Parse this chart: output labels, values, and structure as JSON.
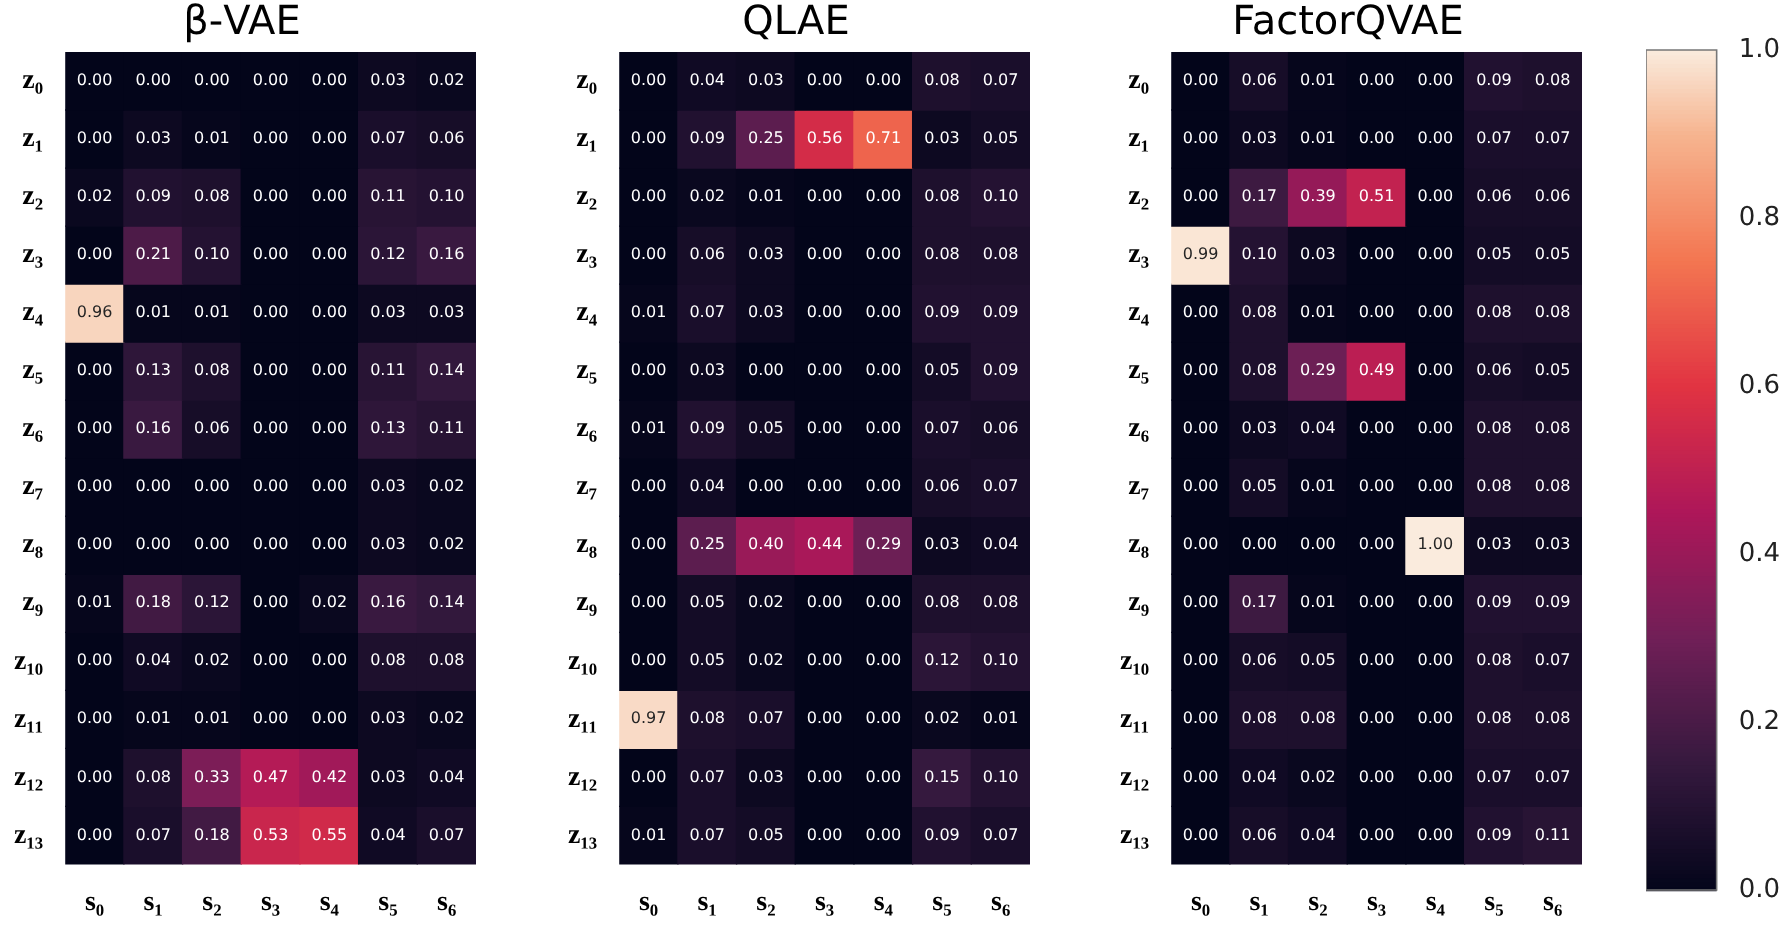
{
  "chart_data": [
    {
      "type": "heatmap",
      "title": "β-VAE",
      "categories": [
        "s₀",
        "s₁",
        "s₂",
        "s₃",
        "s₄",
        "s₅",
        "s₆"
      ],
      "y_categories": [
        "z₀",
        "z₁",
        "z₂",
        "z₃",
        "z₄",
        "z₅",
        "z₆",
        "z₇",
        "z₈",
        "z₉",
        "z₁₀",
        "z₁₁",
        "z₁₂",
        "z₁₃"
      ],
      "data_labels": true,
      "cells": [
        [
          0,
          0,
          0,
          0,
          0,
          0.03,
          0.02
        ],
        [
          0,
          0.03,
          0.01,
          0,
          0,
          0.07,
          0.06
        ],
        [
          0.02,
          0.09,
          0.08,
          0,
          0,
          0.11,
          0.1
        ],
        [
          0,
          0.21,
          0.1,
          0,
          0,
          0.12,
          0.16
        ],
        [
          0.96,
          0.01,
          0.01,
          0,
          0,
          0.03,
          0.03
        ],
        [
          0,
          0.13,
          0.08,
          0,
          0,
          0.11,
          0.14
        ],
        [
          0,
          0.16,
          0.06,
          0,
          0,
          0.13,
          0.11
        ],
        [
          0,
          0,
          0,
          0,
          0,
          0.03,
          0.02
        ],
        [
          0,
          0,
          0,
          0,
          0,
          0.03,
          0.02
        ],
        [
          0.01,
          0.18,
          0.12,
          0,
          0.02,
          0.16,
          0.14
        ],
        [
          0,
          0.04,
          0.02,
          0,
          0,
          0.08,
          0.08
        ],
        [
          0,
          0.01,
          0.01,
          0,
          0,
          0.03,
          0.02
        ],
        [
          0,
          0.08,
          0.33,
          0.47,
          0.42,
          0.03,
          0.04
        ],
        [
          0,
          0.07,
          0.18,
          0.53,
          0.55,
          0.04,
          0.07
        ]
      ],
      "cell_labels": [
        [
          "0.00",
          "0.00",
          "0.00",
          "0.00",
          "0.00",
          "0.03",
          "0.02"
        ],
        [
          "0.00",
          "0.03",
          "0.01",
          "0.00",
          "0.00",
          "0.07",
          "0.06"
        ],
        [
          "0.02",
          "0.09",
          "0.08",
          "0.00",
          "0.00",
          "0.11",
          "0.10"
        ],
        [
          "0.00",
          "0.21",
          "0.10",
          "0.00",
          "0.00",
          "0.12",
          "0.16"
        ],
        [
          "0.96",
          "0.01",
          "0.01",
          "0.00",
          "0.00",
          "0.03",
          "0.03"
        ],
        [
          "0.00",
          "0.13",
          "0.08",
          "0.00",
          "0.00",
          "0.11",
          "0.14"
        ],
        [
          "0.00",
          "0.16",
          "0.06",
          "0.00",
          "0.00",
          "0.13",
          "0.11"
        ],
        [
          "0.00",
          "0.00",
          "0.00",
          "0.00",
          "0.00",
          "0.03",
          "0.02"
        ],
        [
          "0.00",
          "0.00",
          "0.00",
          "0.00",
          "0.00",
          "0.03",
          "0.02"
        ],
        [
          "0.01",
          "0.18",
          "0.12",
          "0.00",
          "0.02",
          "0.16",
          "0.14"
        ],
        [
          "0.00",
          "0.04",
          "0.02",
          "0.00",
          "0.00",
          "0.08",
          "0.08"
        ],
        [
          "0.00",
          "0.01",
          "0.01",
          "0.00",
          "0.00",
          "0.03",
          "0.02"
        ],
        [
          "0.00",
          "0.08",
          "0.33",
          "0.47",
          "0.42",
          "0.03",
          "0.04"
        ],
        [
          "0.00",
          "0.07",
          "0.18",
          "0.53",
          "0.55",
          "0.04",
          "0.07"
        ]
      ]
    },
    {
      "type": "heatmap",
      "title": "QLAE",
      "categories": [
        "s₀",
        "s₁",
        "s₂",
        "s₃",
        "s₄",
        "s₅",
        "s₆"
      ],
      "y_categories": [
        "z₀",
        "z₁",
        "z₂",
        "z₃",
        "z₄",
        "z₅",
        "z₆",
        "z₇",
        "z₈",
        "z₉",
        "z₁₀",
        "z₁₁",
        "z₁₂",
        "z₁₃"
      ],
      "data_labels": true,
      "cells": [
        [
          0,
          0.04,
          0.03,
          0,
          0,
          0.08,
          0.07
        ],
        [
          0,
          0.09,
          0.25,
          0.56,
          0.71,
          0.03,
          0.05
        ],
        [
          0,
          0.02,
          0.01,
          0,
          0,
          0.08,
          0.1
        ],
        [
          0,
          0.06,
          0.03,
          0,
          0,
          0.08,
          0.08
        ],
        [
          0.01,
          0.07,
          0.03,
          0,
          0,
          0.09,
          0.09
        ],
        [
          0,
          0.03,
          0,
          0,
          0,
          0.05,
          0.09
        ],
        [
          0.01,
          0.09,
          0.05,
          0,
          0,
          0.07,
          0.06
        ],
        [
          0,
          0.04,
          0,
          0,
          0,
          0.06,
          0.07
        ],
        [
          0,
          0.25,
          0.4,
          0.44,
          0.29,
          0.03,
          0.04
        ],
        [
          0,
          0.05,
          0.02,
          0,
          0,
          0.08,
          0.08
        ],
        [
          0,
          0.05,
          0.02,
          0,
          0,
          0.12,
          0.1
        ],
        [
          0.97,
          0.08,
          0.07,
          0,
          0,
          0.02,
          0.01
        ],
        [
          0,
          0.07,
          0.03,
          0,
          0,
          0.15,
          0.1
        ],
        [
          0.01,
          0.07,
          0.05,
          0,
          0,
          0.09,
          0.07
        ]
      ],
      "cell_labels": [
        [
          "0.00",
          "0.04",
          "0.03",
          "0.00",
          "0.00",
          "0.08",
          "0.07"
        ],
        [
          "0.00",
          "0.09",
          "0.25",
          "0.56",
          "0.71",
          "0.03",
          "0.05"
        ],
        [
          "0.00",
          "0.02",
          "0.01",
          "0.00",
          "0.00",
          "0.08",
          "0.10"
        ],
        [
          "0.00",
          "0.06",
          "0.03",
          "0.00",
          "0.00",
          "0.08",
          "0.08"
        ],
        [
          "0.01",
          "0.07",
          "0.03",
          "0.00",
          "0.00",
          "0.09",
          "0.09"
        ],
        [
          "0.00",
          "0.03",
          "0.00",
          "0.00",
          "0.00",
          "0.05",
          "0.09"
        ],
        [
          "0.01",
          "0.09",
          "0.05",
          "0.00",
          "0.00",
          "0.07",
          "0.06"
        ],
        [
          "0.00",
          "0.04",
          "0.00",
          "0.00",
          "0.00",
          "0.06",
          "0.07"
        ],
        [
          "0.00",
          "0.25",
          "0.40",
          "0.44",
          "0.29",
          "0.03",
          "0.04"
        ],
        [
          "0.00",
          "0.05",
          "0.02",
          "0.00",
          "0.00",
          "0.08",
          "0.08"
        ],
        [
          "0.00",
          "0.05",
          "0.02",
          "0.00",
          "0.00",
          "0.12",
          "0.10"
        ],
        [
          "0.97",
          "0.08",
          "0.07",
          "0.00",
          "0.00",
          "0.02",
          "0.01"
        ],
        [
          "0.00",
          "0.07",
          "0.03",
          "0.00",
          "0.00",
          "0.15",
          "0.10"
        ],
        [
          "0.01",
          "0.07",
          "0.05",
          "0.00",
          "0.00",
          "0.09",
          "0.07"
        ]
      ]
    },
    {
      "type": "heatmap",
      "title": "FactorQVAE",
      "categories": [
        "s₀",
        "s₁",
        "s₂",
        "s₃",
        "s₄",
        "s₅",
        "s₆"
      ],
      "y_categories": [
        "z₀",
        "z₁",
        "z₂",
        "z₃",
        "z₄",
        "z₅",
        "z₆",
        "z₇",
        "z₈",
        "z₉",
        "z₁₀",
        "z₁₁",
        "z₁₂",
        "z₁₃"
      ],
      "clim": [
        0,
        1
      ],
      "cticks": [
        {
          "value": 0,
          "label": "0.0"
        },
        {
          "value": 0.2,
          "label": "0.2"
        },
        {
          "value": 0.4,
          "label": "0.4"
        },
        {
          "value": 0.6,
          "label": "0.6"
        },
        {
          "value": 0.8,
          "label": "0.8"
        },
        {
          "value": 1,
          "label": "1.0"
        }
      ],
      "data_labels": true,
      "cells": [
        [
          0,
          0.06,
          0.01,
          0,
          0,
          0.09,
          0.08
        ],
        [
          0,
          0.03,
          0.01,
          0,
          0,
          0.07,
          0.07
        ],
        [
          0,
          0.17,
          0.39,
          0.51,
          0,
          0.06,
          0.06
        ],
        [
          0.99,
          0.1,
          0.03,
          0,
          0,
          0.05,
          0.05
        ],
        [
          0,
          0.08,
          0.01,
          0,
          0,
          0.08,
          0.08
        ],
        [
          0,
          0.08,
          0.29,
          0.49,
          0,
          0.06,
          0.05
        ],
        [
          0,
          0.03,
          0.04,
          0,
          0,
          0.08,
          0.08
        ],
        [
          0,
          0.05,
          0.01,
          0,
          0,
          0.08,
          0.08
        ],
        [
          0,
          0,
          0,
          0,
          1.0,
          0.03,
          0.03
        ],
        [
          0,
          0.17,
          0.01,
          0,
          0,
          0.09,
          0.09
        ],
        [
          0,
          0.06,
          0.05,
          0,
          0,
          0.08,
          0.07
        ],
        [
          0,
          0.08,
          0.08,
          0,
          0,
          0.08,
          0.08
        ],
        [
          0,
          0.04,
          0.02,
          0,
          0,
          0.07,
          0.07
        ],
        [
          0,
          0.06,
          0.04,
          0,
          0,
          0.09,
          0.11
        ]
      ],
      "cell_labels": [
        [
          "0.00",
          "0.06",
          "0.01",
          "0.00",
          "0.00",
          "0.09",
          "0.08"
        ],
        [
          "0.00",
          "0.03",
          "0.01",
          "0.00",
          "0.00",
          "0.07",
          "0.07"
        ],
        [
          "0.00",
          "0.17",
          "0.39",
          "0.51",
          "0.00",
          "0.06",
          "0.06"
        ],
        [
          "0.99",
          "0.10",
          "0.03",
          "0.00",
          "0.00",
          "0.05",
          "0.05"
        ],
        [
          "0.00",
          "0.08",
          "0.01",
          "0.00",
          "0.00",
          "0.08",
          "0.08"
        ],
        [
          "0.00",
          "0.08",
          "0.29",
          "0.49",
          "0.00",
          "0.06",
          "0.05"
        ],
        [
          "0.00",
          "0.03",
          "0.04",
          "0.00",
          "0.00",
          "0.08",
          "0.08"
        ],
        [
          "0.00",
          "0.05",
          "0.01",
          "0.00",
          "0.00",
          "0.08",
          "0.08"
        ],
        [
          "0.00",
          "0.00",
          "0.00",
          "0.00",
          "1.00",
          "0.03",
          "0.03"
        ],
        [
          "0.00",
          "0.17",
          "0.01",
          "0.00",
          "0.00",
          "0.09",
          "0.09"
        ],
        [
          "0.00",
          "0.06",
          "0.05",
          "0.00",
          "0.00",
          "0.08",
          "0.07"
        ],
        [
          "0.00",
          "0.08",
          "0.08",
          "0.00",
          "0.00",
          "0.08",
          "0.08"
        ],
        [
          "0.00",
          "0.04",
          "0.02",
          "0.00",
          "0.00",
          "0.07",
          "0.07"
        ],
        [
          "0.00",
          "0.06",
          "0.04",
          "0.00",
          "0.00",
          "0.09",
          "0.11"
        ]
      ]
    }
  ]
}
